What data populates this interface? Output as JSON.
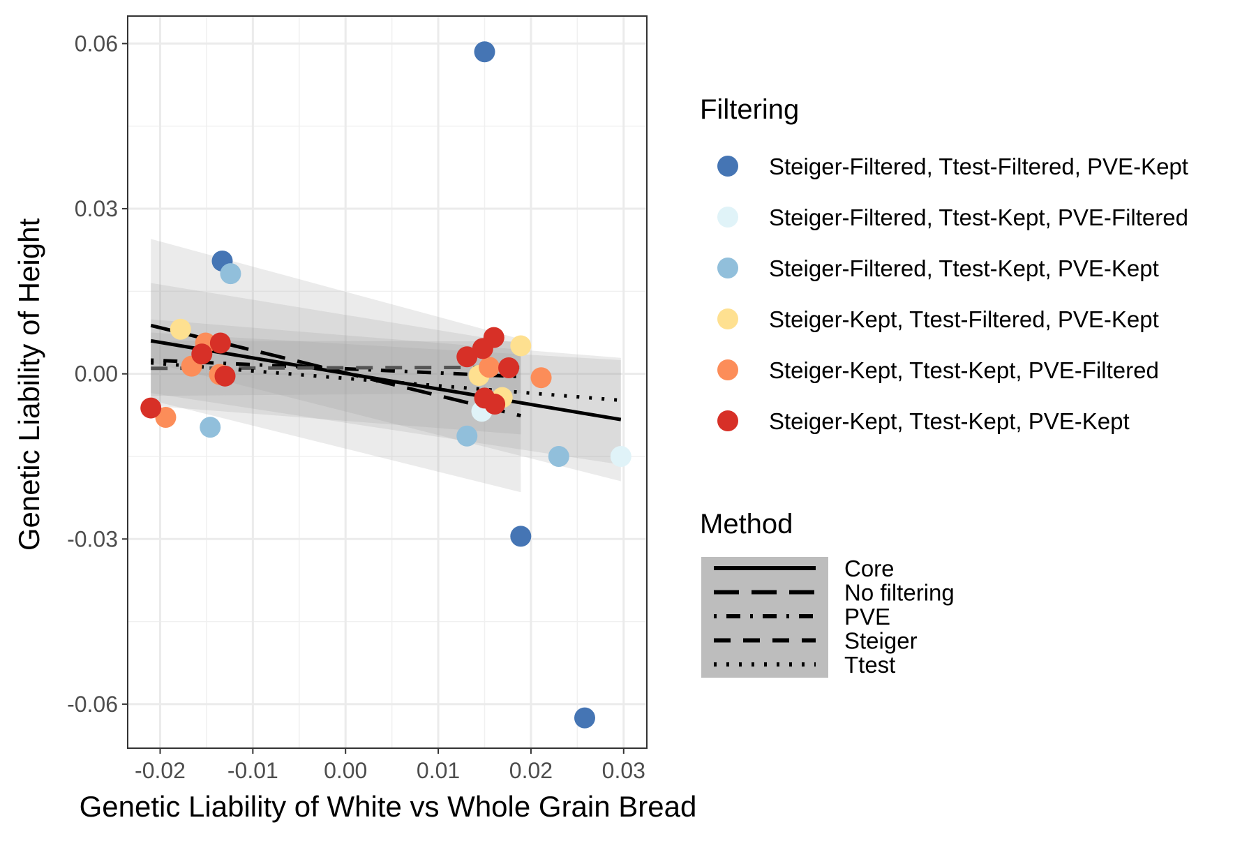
{
  "chart_data": {
    "type": "scatter",
    "xlabel": "Genetic Liability of White vs Whole Grain Bread",
    "ylabel": "Genetic Liability of Height",
    "xlim": [
      -0.0235,
      0.0325
    ],
    "ylim": [
      -0.068,
      0.065
    ],
    "x_ticks": [
      -0.02,
      -0.01,
      0.0,
      0.01,
      0.02,
      0.03
    ],
    "x_tick_labels": [
      "-0.02",
      "-0.01",
      "0.00",
      "0.01",
      "0.02",
      "0.03"
    ],
    "y_ticks": [
      -0.06,
      -0.03,
      0.0,
      0.03,
      0.06
    ],
    "y_tick_labels": [
      "-0.06",
      "-0.03",
      "0.00",
      "0.03",
      "0.06"
    ],
    "grid": true,
    "theme": "bw",
    "legend_position": "right",
    "filtering_legend": {
      "title": "Filtering",
      "entries": [
        {
          "label": "Steiger-Filtered, Ttest-Filtered, PVE-Kept",
          "color": "#4575b4"
        },
        {
          "label": "Steiger-Filtered, Ttest-Kept, PVE-Filtered",
          "color": "#e0f3f8"
        },
        {
          "label": "Steiger-Filtered, Ttest-Kept, PVE-Kept",
          "color": "#91bfdb"
        },
        {
          "label": "Steiger-Kept, Ttest-Filtered, PVE-Kept",
          "color": "#fee090"
        },
        {
          "label": "Steiger-Kept, Ttest-Kept, PVE-Filtered",
          "color": "#fc8d59"
        },
        {
          "label": "Steiger-Kept, Ttest-Kept, PVE-Kept",
          "color": "#d73027"
        }
      ]
    },
    "method_legend": {
      "title": "Method",
      "entries": [
        {
          "label": "Core",
          "dash": "solid"
        },
        {
          "label": "No filtering",
          "dash": "longdash"
        },
        {
          "label": "PVE",
          "dash": "dotdash"
        },
        {
          "label": "Steiger",
          "dash": "dashed"
        },
        {
          "label": "Ttest",
          "dash": "dotted"
        }
      ]
    },
    "points": [
      {
        "x": 0.015,
        "y": 0.0585,
        "group": 0
      },
      {
        "x": -0.0133,
        "y": 0.0205,
        "group": 0
      },
      {
        "x": 0.0189,
        "y": -0.0295,
        "group": 0
      },
      {
        "x": 0.0258,
        "y": -0.0625,
        "group": 0
      },
      {
        "x": 0.0297,
        "y": -0.015,
        "group": 1
      },
      {
        "x": 0.0147,
        "y": -0.0068,
        "group": 1
      },
      {
        "x": -0.0124,
        "y": 0.0182,
        "group": 2
      },
      {
        "x": -0.0146,
        "y": -0.0097,
        "group": 2
      },
      {
        "x": 0.0131,
        "y": -0.0113,
        "group": 2
      },
      {
        "x": 0.023,
        "y": -0.015,
        "group": 2
      },
      {
        "x": -0.0178,
        "y": 0.0081,
        "group": 3
      },
      {
        "x": 0.0189,
        "y": 0.0051,
        "group": 3
      },
      {
        "x": 0.0144,
        "y": -0.0003,
        "group": 3
      },
      {
        "x": 0.0169,
        "y": -0.0043,
        "group": 3
      },
      {
        "x": -0.0194,
        "y": -0.0079,
        "group": 4
      },
      {
        "x": -0.0166,
        "y": 0.0014,
        "group": 4
      },
      {
        "x": -0.0151,
        "y": 0.0056,
        "group": 4
      },
      {
        "x": 0.0211,
        "y": -0.0007,
        "group": 4
      },
      {
        "x": 0.0155,
        "y": 0.0012,
        "group": 4
      },
      {
        "x": -0.0136,
        "y": -0.0001,
        "group": 4
      },
      {
        "x": -0.021,
        "y": -0.0062,
        "group": 5
      },
      {
        "x": -0.0135,
        "y": 0.0056,
        "group": 5
      },
      {
        "x": -0.0155,
        "y": 0.0036,
        "group": 5
      },
      {
        "x": -0.013,
        "y": -0.0004,
        "group": 5
      },
      {
        "x": 0.016,
        "y": 0.0066,
        "group": 5
      },
      {
        "x": 0.0148,
        "y": 0.0046,
        "group": 5
      },
      {
        "x": 0.0131,
        "y": 0.0031,
        "group": 5
      },
      {
        "x": 0.0176,
        "y": 0.0011,
        "group": 5
      },
      {
        "x": 0.015,
        "y": -0.0044,
        "group": 5
      },
      {
        "x": 0.0161,
        "y": -0.0055,
        "group": 5
      }
    ],
    "fits": [
      {
        "name": "Core",
        "dash": "solid",
        "x0": -0.021,
        "y0": 0.006,
        "x1": 0.0297,
        "y1": -0.0083,
        "ci_lo0": 0.0021,
        "ci_hi0": 0.0099,
        "ci_lo1": -0.0195,
        "ci_hi1": 0.0029
      },
      {
        "name": "No filtering",
        "dash": "longdash",
        "x0": -0.021,
        "y0": 0.0088,
        "x1": 0.0189,
        "y1": -0.0076,
        "ci_lo0": -0.0048,
        "ci_hi0": 0.0245,
        "ci_lo1": -0.0215,
        "ci_hi1": 0.0063
      },
      {
        "name": "PVE",
        "dash": "dotdash",
        "x0": -0.021,
        "y0": 0.0025,
        "x1": 0.0189,
        "y1": -0.0005,
        "ci_lo0": -0.0058,
        "ci_hi0": 0.0165,
        "ci_lo1": -0.011,
        "ci_hi1": 0.0055
      },
      {
        "name": "Steiger",
        "dash": "dashed",
        "x0": -0.021,
        "y0": 0.001,
        "x1": 0.0189,
        "y1": 0.0012,
        "ci_lo0": -0.004,
        "ci_hi0": 0.006,
        "ci_lo1": -0.0035,
        "ci_hi1": 0.0059
      },
      {
        "name": "Ttest",
        "dash": "dotted",
        "x0": -0.021,
        "y0": 0.002,
        "x1": 0.0297,
        "y1": -0.0048,
        "ci_lo0": -0.0035,
        "ci_hi0": 0.0075,
        "ci_lo1": -0.0165,
        "ci_hi1": 0.0025
      }
    ]
  }
}
